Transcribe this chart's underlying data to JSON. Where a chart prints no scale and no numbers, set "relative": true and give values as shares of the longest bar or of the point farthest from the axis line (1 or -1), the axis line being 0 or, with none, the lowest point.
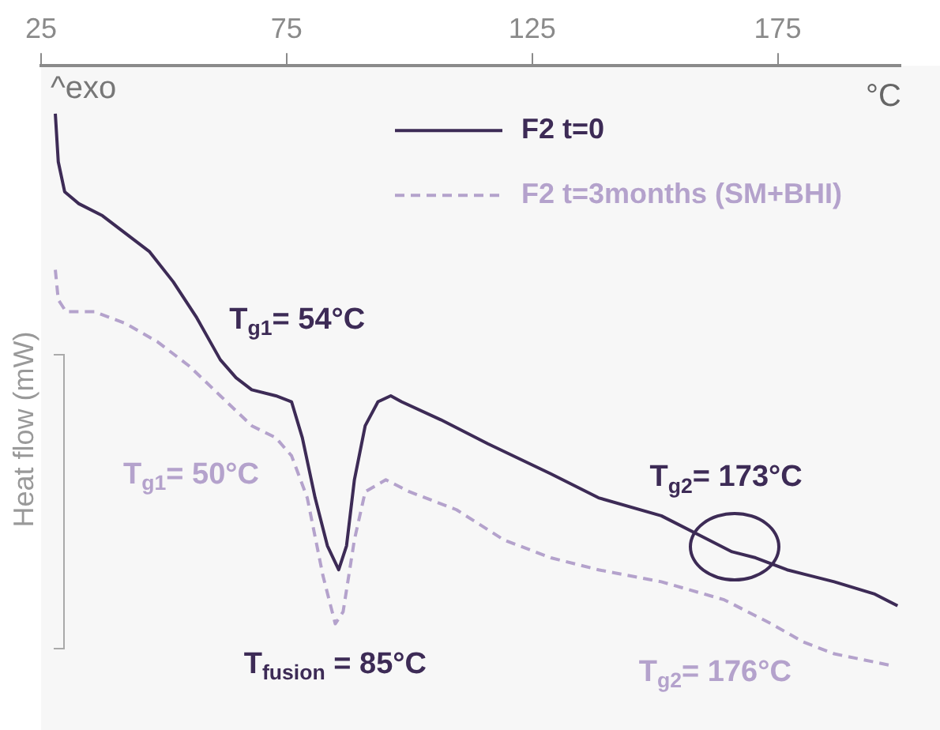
{
  "chart_data": {
    "type": "line",
    "relative": true,
    "xlabel": "°C",
    "ylabel": "Heat flow (mW)",
    "xlim": [
      25,
      200
    ],
    "xticks": [
      25,
      75,
      125,
      175
    ],
    "legend": "top right",
    "marker": "none",
    "series": [
      {
        "name": "F2 t=0",
        "color": "#3d2b56",
        "line_style": "solid",
        "x": [
          27.9,
          28.5,
          29.8,
          32.7,
          37.5,
          42.3,
          47.1,
          51.9,
          56.7,
          61.5,
          64.7,
          67.9,
          72.8,
          76.0,
          78.2,
          80.8,
          83.3,
          85.6,
          87.2,
          88.8,
          91.0,
          93.6,
          96.2,
          98.4,
          106.4,
          116.0,
          128.8,
          138.5,
          151.3,
          160.9,
          165.7,
          170.5,
          176.9,
          186.5,
          194.6,
          199.4
        ],
        "values": [
          -0.08,
          -0.16,
          -0.21,
          -0.23,
          -0.25,
          -0.28,
          -0.31,
          -0.36,
          -0.42,
          -0.49,
          -0.52,
          -0.54,
          -0.55,
          -0.56,
          -0.62,
          -0.72,
          -0.8,
          -0.84,
          -0.8,
          -0.69,
          -0.6,
          -0.56,
          -0.55,
          -0.56,
          -0.59,
          -0.63,
          -0.68,
          -0.72,
          -0.75,
          -0.79,
          -0.81,
          -0.82,
          -0.84,
          -0.86,
          -0.88,
          -0.9
        ]
      },
      {
        "name": "F2 t=3months (SM+BHI)",
        "color": "#b4a2cc",
        "line_style": "dashed",
        "x": [
          27.9,
          28.5,
          30.1,
          35.9,
          42.3,
          48.7,
          55.1,
          61.5,
          67.9,
          72.8,
          76.0,
          79.2,
          82.4,
          84.9,
          86.5,
          88.8,
          91.0,
          95.2,
          100.0,
          109.6,
          119.2,
          128.8,
          138.5,
          151.3,
          164.1,
          173.7,
          180.1,
          186.5,
          198.4
        ],
        "values": [
          -0.34,
          -0.39,
          -0.41,
          -0.41,
          -0.43,
          -0.46,
          -0.5,
          -0.55,
          -0.6,
          -0.62,
          -0.65,
          -0.72,
          -0.85,
          -0.93,
          -0.91,
          -0.79,
          -0.71,
          -0.69,
          -0.71,
          -0.74,
          -0.79,
          -0.82,
          -0.84,
          -0.86,
          -0.89,
          -0.93,
          -0.96,
          -0.98,
          -1.0
        ]
      }
    ],
    "annotations": [
      "^exo",
      {
        "text": "T$_{g1}$= 54°C",
        "x": 54,
        "y": -0.39
      },
      "T$_{g1}$= 50°C",
      {
        "text": "T$_{fusion}$ = 85°C",
        "x": 85.6,
        "y": -0.84
      },
      {
        "text": "T$_{g2}$= 173°C",
        "x": 166,
        "y": -0.8
      },
      {
        "text": "T$_{g2}$= 176°C",
        "x": 176,
        "y": -0.94
      }
    ]
  }
}
